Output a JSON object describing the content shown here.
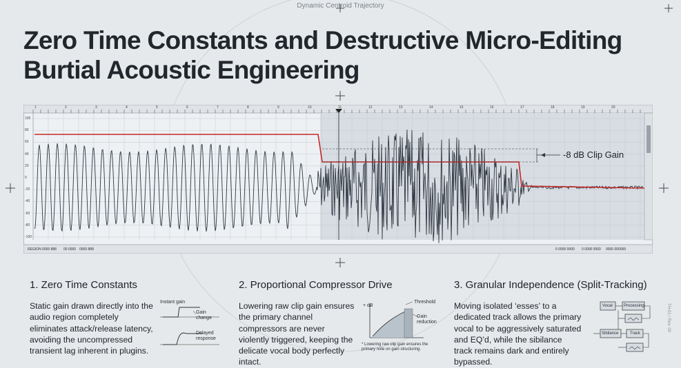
{
  "header": {
    "top_label": "Dynamic Centroid Trajectory",
    "title_line1": "Zero Time Constants and Destructive Micro-Editing",
    "title_line2": "Burtial Acoustic Engineering"
  },
  "waveform_panel": {
    "y_ticks": [
      "100",
      "80",
      "60",
      "40",
      "20",
      "0",
      "-20",
      "-40",
      "-60",
      "-80",
      "-100"
    ],
    "ruler_marks": [
      "1",
      "2",
      "3",
      "4",
      "5",
      "6",
      "7",
      "8",
      "9",
      "10",
      "11",
      "12",
      "13",
      "14",
      "15",
      "16",
      "17",
      "18",
      "19",
      "20"
    ],
    "annotation": "-8 dB Clip Gain",
    "status_left": [
      "REGION 0000 888",
      "00 0000",
      "0000 888"
    ],
    "status_right": [
      "0 0000 0000",
      "0 0000 0000",
      "0000 000000"
    ],
    "colors": {
      "gain_line": "#c62828",
      "waveform": "#2c3540",
      "highlight": "#d6dbe1"
    }
  },
  "sections": [
    {
      "title": "1. Zero Time Constants",
      "body": "Static gain drawn directly into the audio region completely eliminates attack/release latency, avoiding the uncompressed transient lag inherent in plugins.",
      "diagram": {
        "instant_label": "Instant gain",
        "change_label": "Gain change",
        "delayed_label": "Delayed response"
      }
    },
    {
      "title": "2. Proportional Compressor Drive",
      "body": "Lowering raw clip gain ensures the primary channel compressors are never violently triggered, keeping the delicate vocal body perfectly intact.",
      "diagram": {
        "db_label": "+ dB",
        "threshold_label": "Threshold",
        "reduction_label": "Gain reduction",
        "footnote": "* Lowering raw clip gain ensures the primary note on gain structuring."
      }
    },
    {
      "title": "3. Granular Independence (Split-Tracking)",
      "body": "Moving isolated ‘esses’ to a dedicated track allows the primary vocal to be aggressively saturated and EQ’d, while the sibilance track remains dark and entirely bypassed.",
      "diagram": {
        "vocal_label": "Vocal",
        "processing_label": "Processing",
        "sibilance_label": "Sibilance",
        "track_label": "Track"
      }
    }
  ],
  "side_label": "TH-01 / Rev. 00"
}
